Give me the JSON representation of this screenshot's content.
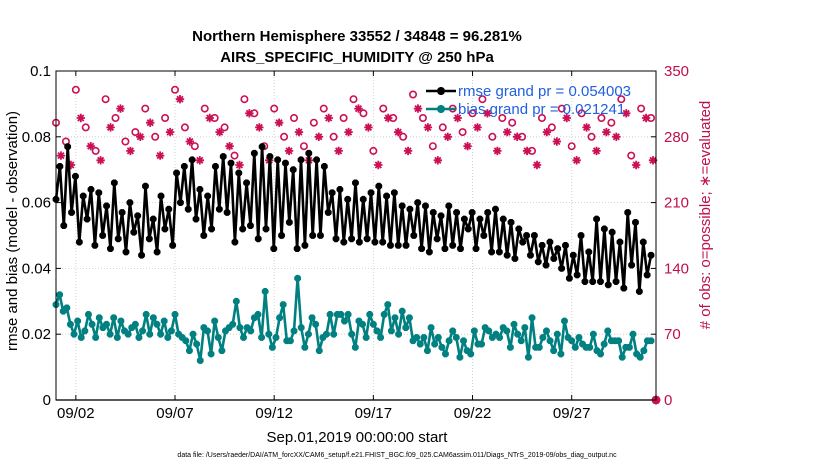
{
  "chart_data": {
    "type": "line",
    "title": "Northern Hemisphere 33552 / 34848 = 96.281%",
    "subtitle": "AIRS_SPECIFIC_HUMIDITY @ 250 hPa",
    "xlabel": "Sep.01,2019 00:00:00 start",
    "ylabel": "rmse and bias (model - observation)",
    "ylabel_right": "# of obs: o=possible; ∗=evaluated",
    "footer": "data file: /Users/raeder/DAI/ATM_forcXX/CAM6_setup/f.e21.FHIST_BGC.f09_025.CAM6assim.011/Diags_NTrS_2019-09/obs_diag_output.nc",
    "xlim": [
      0.0,
      30.25
    ],
    "ylim": [
      0,
      0.1
    ],
    "ylim_right": [
      0,
      350
    ],
    "x_ticks": [
      1,
      6,
      11,
      16,
      21,
      26
    ],
    "x_tick_labels": [
      "09/02",
      "09/07",
      "09/12",
      "09/17",
      "09/22",
      "09/27"
    ],
    "y_ticks": [
      0,
      0.02,
      0.04,
      0.06,
      0.08,
      0.1
    ],
    "y_tick_labels": [
      "0",
      "0.02",
      "0.04",
      "0.06",
      "0.08",
      "0.1"
    ],
    "y_ticks_right": [
      0,
      70,
      140,
      210,
      280,
      350
    ],
    "y_tick_labels_right": [
      "0",
      "70",
      "140",
      "210",
      "280",
      "350"
    ],
    "legend_location": "top-right",
    "grid": true,
    "colors": {
      "rmse": "#000000",
      "bias": "#008080",
      "obs": "#cc0e55",
      "legend_text": "#1f5fe0",
      "zero_line": "#b0b0b0"
    },
    "series": [
      {
        "name": "rmse grand pr = 0.054003",
        "label": "rmse grand pr = 0.054003",
        "color": "#000000",
        "marker": "star",
        "values": [
          0.061,
          0.071,
          0.053,
          0.077,
          0.057,
          0.068,
          0.048,
          0.062,
          0.055,
          0.064,
          0.047,
          0.063,
          0.05,
          0.059,
          0.046,
          0.066,
          0.049,
          0.057,
          0.045,
          0.06,
          0.051,
          0.056,
          0.044,
          0.065,
          0.049,
          0.055,
          0.045,
          0.062,
          0.052,
          0.058,
          0.047,
          0.069,
          0.06,
          0.071,
          0.058,
          0.073,
          0.055,
          0.064,
          0.05,
          0.062,
          0.052,
          0.071,
          0.058,
          0.074,
          0.057,
          0.072,
          0.048,
          0.069,
          0.052,
          0.066,
          0.053,
          0.075,
          0.049,
          0.077,
          0.052,
          0.074,
          0.046,
          0.073,
          0.05,
          0.072,
          0.054,
          0.07,
          0.046,
          0.073,
          0.047,
          0.075,
          0.05,
          0.073,
          0.05,
          0.071,
          0.057,
          0.063,
          0.049,
          0.064,
          0.048,
          0.061,
          0.049,
          0.066,
          0.048,
          0.061,
          0.049,
          0.063,
          0.048,
          0.065,
          0.048,
          0.062,
          0.047,
          0.063,
          0.047,
          0.059,
          0.047,
          0.058,
          0.05,
          0.06,
          0.046,
          0.059,
          0.045,
          0.057,
          0.049,
          0.056,
          0.046,
          0.059,
          0.047,
          0.057,
          0.046,
          0.055,
          0.052,
          0.057,
          0.046,
          0.055,
          0.05,
          0.057,
          0.045,
          0.058,
          0.045,
          0.055,
          0.044,
          0.054,
          0.043,
          0.052,
          0.048,
          0.05,
          0.044,
          0.05,
          0.042,
          0.047,
          0.041,
          0.048,
          0.043,
          0.046,
          0.04,
          0.047,
          0.037,
          0.044,
          0.038,
          0.05,
          0.036,
          0.045,
          0.036,
          0.055,
          0.036,
          0.052,
          0.035,
          0.051,
          0.036,
          0.048,
          0.034,
          0.057,
          0.041,
          0.054,
          0.033,
          0.048,
          0.038,
          0.044
        ]
      },
      {
        "name": "bias grand pr = 0.021241",
        "label": "bias grand pr = 0.021241",
        "color": "#008080",
        "marker": "star",
        "values": [
          0.029,
          0.032,
          0.027,
          0.028,
          0.023,
          0.02,
          0.024,
          0.019,
          0.021,
          0.026,
          0.023,
          0.019,
          0.025,
          0.022,
          0.023,
          0.02,
          0.025,
          0.019,
          0.024,
          0.021,
          0.02,
          0.022,
          0.023,
          0.019,
          0.021,
          0.026,
          0.02,
          0.025,
          0.023,
          0.02,
          0.024,
          0.019,
          0.021,
          0.026,
          0.02,
          0.019,
          0.018,
          0.015,
          0.02,
          0.017,
          0.012,
          0.022,
          0.021,
          0.014,
          0.024,
          0.019,
          0.015,
          0.021,
          0.022,
          0.023,
          0.03,
          0.022,
          0.019,
          0.022,
          0.021,
          0.025,
          0.026,
          0.019,
          0.033,
          0.02,
          0.016,
          0.019,
          0.025,
          0.029,
          0.018,
          0.018,
          0.021,
          0.037,
          0.022,
          0.016,
          0.02,
          0.025,
          0.023,
          0.015,
          0.019,
          0.02,
          0.026,
          0.02,
          0.026,
          0.026,
          0.024,
          0.026,
          0.02,
          0.016,
          0.024,
          0.023,
          0.019,
          0.026,
          0.023,
          0.021,
          0.019,
          0.026,
          0.029,
          0.021,
          0.025,
          0.02,
          0.027,
          0.022,
          0.025,
          0.018,
          0.019,
          0.017,
          0.019,
          0.015,
          0.022,
          0.017,
          0.019,
          0.016,
          0.014,
          0.018,
          0.021,
          0.019,
          0.013,
          0.018,
          0.015,
          0.014,
          0.021,
          0.017,
          0.017,
          0.022,
          0.021,
          0.019,
          0.02,
          0.019,
          0.022,
          0.021,
          0.016,
          0.023,
          0.02,
          0.018,
          0.022,
          0.013,
          0.025,
          0.016,
          0.016,
          0.019,
          0.021,
          0.018,
          0.015,
          0.02,
          0.014,
          0.024,
          0.019,
          0.018,
          0.016,
          0.019,
          0.017,
          0.016,
          0.016,
          0.02,
          0.015,
          0.014,
          0.017,
          0.021,
          0.018,
          0.018,
          0.018,
          0.013,
          0.016,
          0.016,
          0.02,
          0.014,
          0.013,
          0.015,
          0.018,
          0.018
        ]
      },
      {
        "name": "obs possible",
        "axis": "right",
        "color": "#cc0e55",
        "marker": "circle",
        "x": [
          0.0,
          0.5,
          1.0,
          1.5,
          2.0,
          2.5,
          3.0,
          3.5,
          4.0,
          4.5,
          5.0,
          5.5,
          6.0,
          6.5,
          7.0,
          7.5,
          8.0,
          8.5,
          9.0,
          9.5,
          10.0,
          10.5,
          11.0,
          11.5,
          12.0,
          12.5,
          13.0,
          13.5,
          14.0,
          14.5,
          15.0,
          15.5,
          16.0,
          16.5,
          17.0,
          17.5,
          18.0,
          18.5,
          19.0,
          19.5,
          20.0,
          20.5,
          21.0,
          21.5,
          22.0,
          22.5,
          23.0,
          23.5,
          24.0,
          24.5,
          25.0,
          25.5,
          26.0,
          26.5,
          27.0,
          27.5,
          28.0,
          28.5,
          29.0,
          29.5,
          30.0
        ],
        "values": [
          295,
          275,
          330,
          290,
          265,
          320,
          300,
          275,
          285,
          310,
          280,
          300,
          330,
          290,
          270,
          310,
          300,
          290,
          260,
          320,
          305,
          270,
          310,
          280,
          300,
          270,
          295,
          310,
          280,
          300,
          320,
          305,
          265,
          310,
          300,
          280,
          325,
          300,
          270,
          290,
          310,
          285,
          305,
          320,
          280,
          300,
          295,
          280,
          265,
          300,
          290,
          310,
          270,
          305,
          280,
          300,
          295,
          320,
          260,
          310,
          300
        ]
      },
      {
        "name": "obs evaluated",
        "axis": "right",
        "color": "#cc0e55",
        "marker": "star",
        "x": [
          0.25,
          0.75,
          1.25,
          1.75,
          2.25,
          2.75,
          3.25,
          3.75,
          4.25,
          4.75,
          5.25,
          5.75,
          6.25,
          6.75,
          7.25,
          7.75,
          8.25,
          8.75,
          9.25,
          9.75,
          10.25,
          10.75,
          11.25,
          11.75,
          12.25,
          12.75,
          13.25,
          13.75,
          14.25,
          14.75,
          15.25,
          15.75,
          16.25,
          16.75,
          17.25,
          17.75,
          18.25,
          18.75,
          19.25,
          19.75,
          20.25,
          20.75,
          21.25,
          21.75,
          22.25,
          22.75,
          23.25,
          23.75,
          24.25,
          24.75,
          25.25,
          25.75,
          26.25,
          26.75,
          27.25,
          27.75,
          28.25,
          28.75,
          29.25,
          29.75,
          30.1
        ],
        "values": [
          260,
          250,
          300,
          270,
          255,
          290,
          310,
          265,
          280,
          295,
          260,
          285,
          320,
          275,
          255,
          300,
          285,
          270,
          250,
          305,
          290,
          255,
          295,
          265,
          285,
          255,
          280,
          300,
          265,
          285,
          310,
          290,
          250,
          300,
          285,
          265,
          310,
          290,
          255,
          280,
          300,
          270,
          290,
          305,
          265,
          285,
          280,
          265,
          250,
          285,
          275,
          300,
          255,
          290,
          265,
          285,
          280,
          305,
          250,
          300,
          255
        ]
      }
    ],
    "zero_marker_right": {
      "x": 30.25,
      "value": 0
    }
  }
}
